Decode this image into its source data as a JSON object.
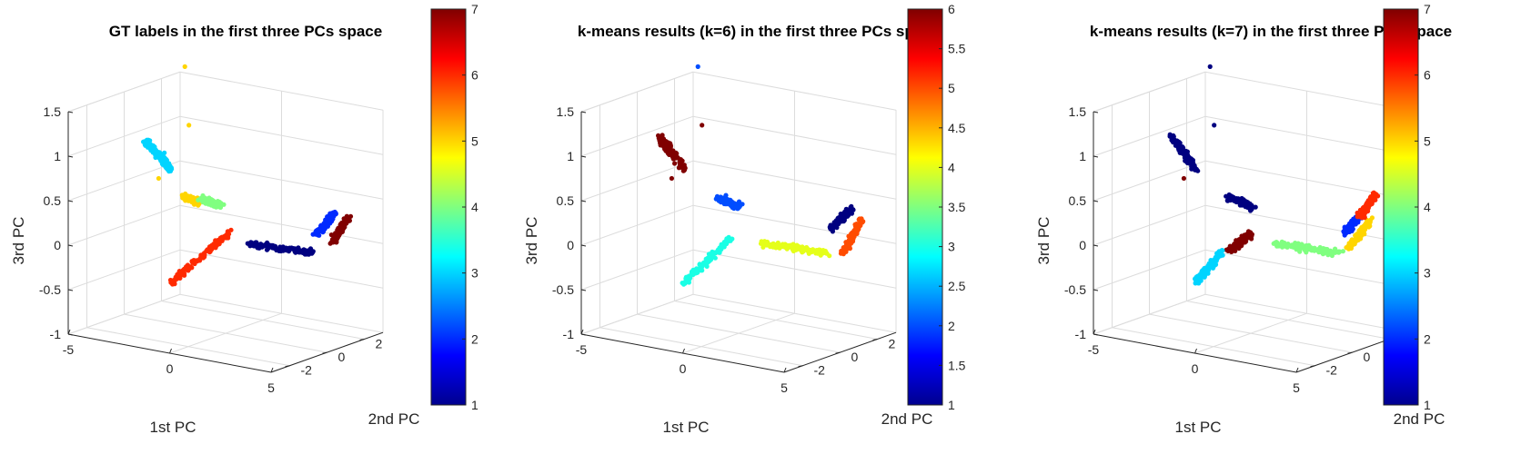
{
  "chart_data": [
    {
      "type": "scatter",
      "title": "GT labels in the first three PCs space",
      "xlabel": "1st PC",
      "ylabel": "2nd PC",
      "zlabel": "3rd PC",
      "xlim": [
        -5,
        5
      ],
      "ylim": [
        -3,
        3
      ],
      "zlim": [
        -1,
        1.5
      ],
      "xticks": [
        "-5",
        "0",
        "5"
      ],
      "yticks": [
        "-2",
        "0",
        "2"
      ],
      "zticks": [
        "-1",
        "-0.5",
        "0",
        "0.5",
        "1",
        "1.5"
      ],
      "grid": true,
      "colorbar": {
        "min": 1,
        "max": 7,
        "ticks": [
          "1",
          "2",
          "3",
          "4",
          "5",
          "6",
          "7"
        ]
      },
      "clusters": [
        {
          "label": 3,
          "x": [
            -2.5,
            -4.3
          ],
          "y": [
            -0.2,
            0.4
          ],
          "z": [
            0.75,
            0.95
          ]
        },
        {
          "label": 5,
          "x": [
            -2.1,
            -1.4
          ],
          "y": [
            0.0,
            0.1
          ],
          "z": [
            0.45,
            0.4
          ]
        },
        {
          "label": 4,
          "x": [
            -1.3,
            -0.8
          ],
          "y": [
            0.1,
            0.6
          ],
          "z": [
            0.45,
            0.35
          ]
        },
        {
          "label": 6,
          "x": [
            0.0,
            -1.9
          ],
          "y": [
            0.2,
            -0.9
          ],
          "z": [
            0.12,
            -0.45
          ]
        },
        {
          "label": 1,
          "x": [
            1.0,
            3.6
          ],
          "y": [
            0.1,
            0.8
          ],
          "z": [
            0.05,
            0.0
          ]
        },
        {
          "label": 2,
          "x": [
            3.6,
            4.0
          ],
          "y": [
            0.9,
            1.5
          ],
          "z": [
            0.2,
            0.4
          ]
        },
        {
          "label": 7,
          "x": [
            4.1,
            4.3
          ],
          "y": [
            1.3,
            1.9
          ],
          "z": [
            0.1,
            0.35
          ]
        }
      ],
      "outliers": [
        {
          "label": 5,
          "x": -2.1,
          "y": 0.1,
          "z": 1.9
        },
        {
          "label": 5,
          "x": -1.9,
          "y": 0.1,
          "z": 1.25
        },
        {
          "label": 5,
          "x": -3.3,
          "y": 0.0,
          "z": 0.6
        }
      ]
    },
    {
      "type": "scatter",
      "title": "k-means results (k=6) in the first three PCs space",
      "xlabel": "1st PC",
      "ylabel": "2nd PC",
      "zlabel": "3rd PC",
      "xlim": [
        -5,
        5
      ],
      "ylim": [
        -3,
        3
      ],
      "zlim": [
        -1,
        1.5
      ],
      "xticks": [
        "-5",
        "0",
        "5"
      ],
      "yticks": [
        "-2",
        "0",
        "2"
      ],
      "zticks": [
        "-1",
        "-0.5",
        "0",
        "0.5",
        "1",
        "1.5"
      ],
      "grid": true,
      "colorbar": {
        "min": 1,
        "max": 6,
        "ticks": [
          "1",
          "1.5",
          "2",
          "2.5",
          "3",
          "3.5",
          "4",
          "4.5",
          "5",
          "5.5",
          "6"
        ]
      },
      "clusters": [
        {
          "label": 6,
          "x": [
            -2.5,
            -4.3
          ],
          "y": [
            -0.2,
            0.4
          ],
          "z": [
            0.75,
            1.0
          ]
        },
        {
          "label": 2,
          "x": [
            -1.3,
            -0.5
          ],
          "y": [
            0.3,
            0.6
          ],
          "z": [
            0.45,
            0.35
          ]
        },
        {
          "label": 3,
          "x": [
            -0.4,
            -1.9
          ],
          "y": [
            0.0,
            -0.9
          ],
          "z": [
            0.05,
            -0.45
          ]
        },
        {
          "label": 4,
          "x": [
            1.0,
            3.6
          ],
          "y": [
            0.1,
            0.8
          ],
          "z": [
            0.05,
            0.0
          ]
        },
        {
          "label": 1,
          "x": [
            3.6,
            4.0
          ],
          "y": [
            1.0,
            1.7
          ],
          "z": [
            0.25,
            0.45
          ]
        },
        {
          "label": 5,
          "x": [
            4.1,
            4.3
          ],
          "y": [
            1.1,
            1.9
          ],
          "z": [
            0.0,
            0.3
          ]
        }
      ],
      "outliers": [
        {
          "label": 2,
          "x": -2.1,
          "y": 0.1,
          "z": 1.9
        },
        {
          "label": 6,
          "x": -1.9,
          "y": 0.1,
          "z": 1.25
        },
        {
          "label": 6,
          "x": -3.3,
          "y": 0.0,
          "z": 0.6
        }
      ]
    },
    {
      "type": "scatter",
      "title": "k-means results (k=7) in the first three PCs space",
      "xlabel": "1st PC",
      "ylabel": "2nd PC",
      "zlabel": "3rd PC",
      "xlim": [
        -5,
        5
      ],
      "ylim": [
        -3,
        3
      ],
      "zlim": [
        -1,
        1.5
      ],
      "xticks": [
        "-5",
        "0",
        "5"
      ],
      "yticks": [
        "-2",
        "0",
        "2"
      ],
      "zticks": [
        "-1",
        "-0.5",
        "0",
        "0.5",
        "1",
        "1.5"
      ],
      "grid": true,
      "colorbar": {
        "min": 1,
        "max": 7,
        "ticks": [
          "1",
          "2",
          "3",
          "4",
          "5",
          "6",
          "7"
        ]
      },
      "clusters": [
        {
          "label": 1,
          "x": [
            -2.5,
            -4.3
          ],
          "y": [
            -0.2,
            0.4
          ],
          "z": [
            0.75,
            1.0
          ]
        },
        {
          "label": 1,
          "x": [
            -1.3,
            -0.5
          ],
          "y": [
            0.3,
            0.6
          ],
          "z": [
            0.45,
            0.35
          ]
        },
        {
          "label": 7,
          "x": [
            -0.2,
            -0.9
          ],
          "y": [
            0.2,
            -0.2
          ],
          "z": [
            0.1,
            -0.1
          ]
        },
        {
          "label": 3,
          "x": [
            -1.0,
            -1.9
          ],
          "y": [
            -0.5,
            -0.9
          ],
          "z": [
            -0.1,
            -0.45
          ]
        },
        {
          "label": 4,
          "x": [
            1.0,
            3.6
          ],
          "y": [
            0.1,
            0.8
          ],
          "z": [
            0.05,
            0.0
          ]
        },
        {
          "label": 5,
          "x": [
            3.9,
            4.2
          ],
          "y": [
            1.0,
            1.8
          ],
          "z": [
            0.05,
            0.3
          ]
        },
        {
          "label": 2,
          "x": [
            3.6,
            3.9
          ],
          "y": [
            1.1,
            1.5
          ],
          "z": [
            0.2,
            0.35
          ]
        },
        {
          "label": 6,
          "x": [
            4.0,
            4.3
          ],
          "y": [
            1.5,
            2.0
          ],
          "z": [
            0.35,
            0.6
          ]
        }
      ],
      "outliers": [
        {
          "label": 1,
          "x": -2.1,
          "y": 0.1,
          "z": 1.9
        },
        {
          "label": 1,
          "x": -1.9,
          "y": 0.1,
          "z": 1.25
        },
        {
          "label": 7,
          "x": -3.3,
          "y": 0.0,
          "z": 0.6
        }
      ]
    }
  ]
}
